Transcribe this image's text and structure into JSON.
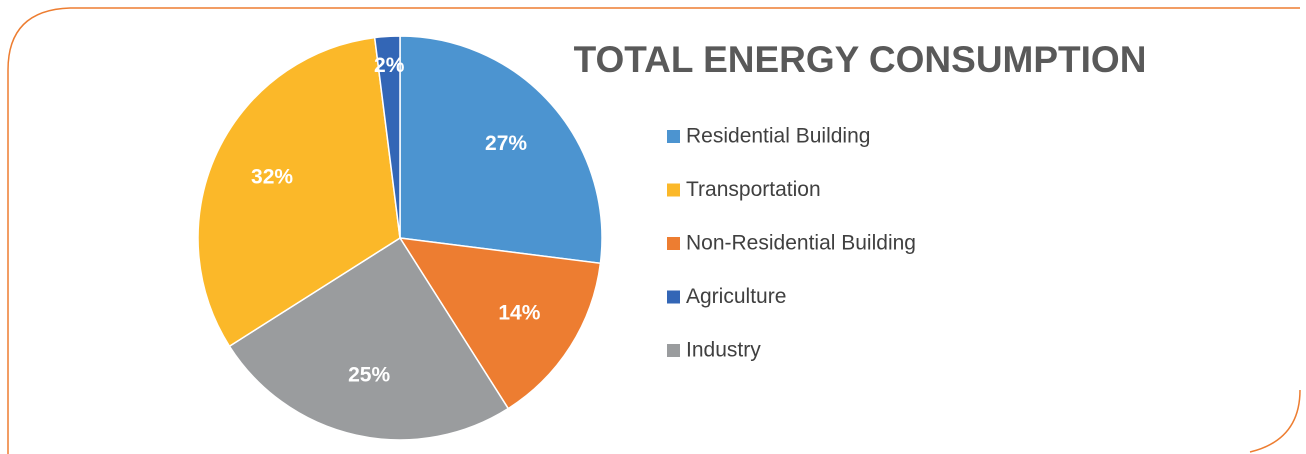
{
  "chart_data": {
    "type": "pie",
    "title": "TOTAL ENERGY CONSUMPTION",
    "categories": [
      "Residential Building",
      "Non-Residential Building",
      "Industry",
      "Transportation",
      "Agriculture"
    ],
    "values": [
      27,
      14,
      25,
      32,
      2
    ],
    "value_labels": [
      "27%",
      "14%",
      "25%",
      "32%",
      "2%"
    ],
    "colors": [
      "#4c94d0",
      "#ed7d31",
      "#9a9c9e",
      "#fbb829",
      "#3366b6"
    ],
    "legend_order": [
      0,
      3,
      1,
      4,
      2
    ],
    "legend": "right"
  }
}
